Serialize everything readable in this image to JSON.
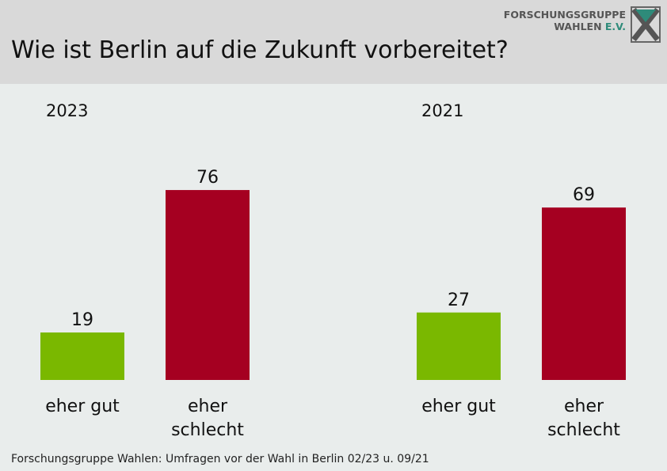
{
  "title": "Wie ist Berlin auf die Zukunft vorbereitet?",
  "logo": {
    "line1": "FORSCHUNGSGRUPPE",
    "line2": "WAHLEN",
    "line2_suffix": "E.V."
  },
  "footer": "Forschungsgruppe Wahlen: Umfragen vor der Wahl in Berlin 02/23 u. 09/21",
  "colors": {
    "good": "#7ab800",
    "bad": "#a50021"
  },
  "chart_data": [
    {
      "type": "bar",
      "title": "2023",
      "categories": [
        "eher gut",
        "eher schlecht"
      ],
      "values": [
        19,
        76
      ]
    },
    {
      "type": "bar",
      "title": "2021",
      "categories": [
        "eher gut",
        "eher schlecht"
      ],
      "values": [
        27,
        69
      ]
    }
  ]
}
